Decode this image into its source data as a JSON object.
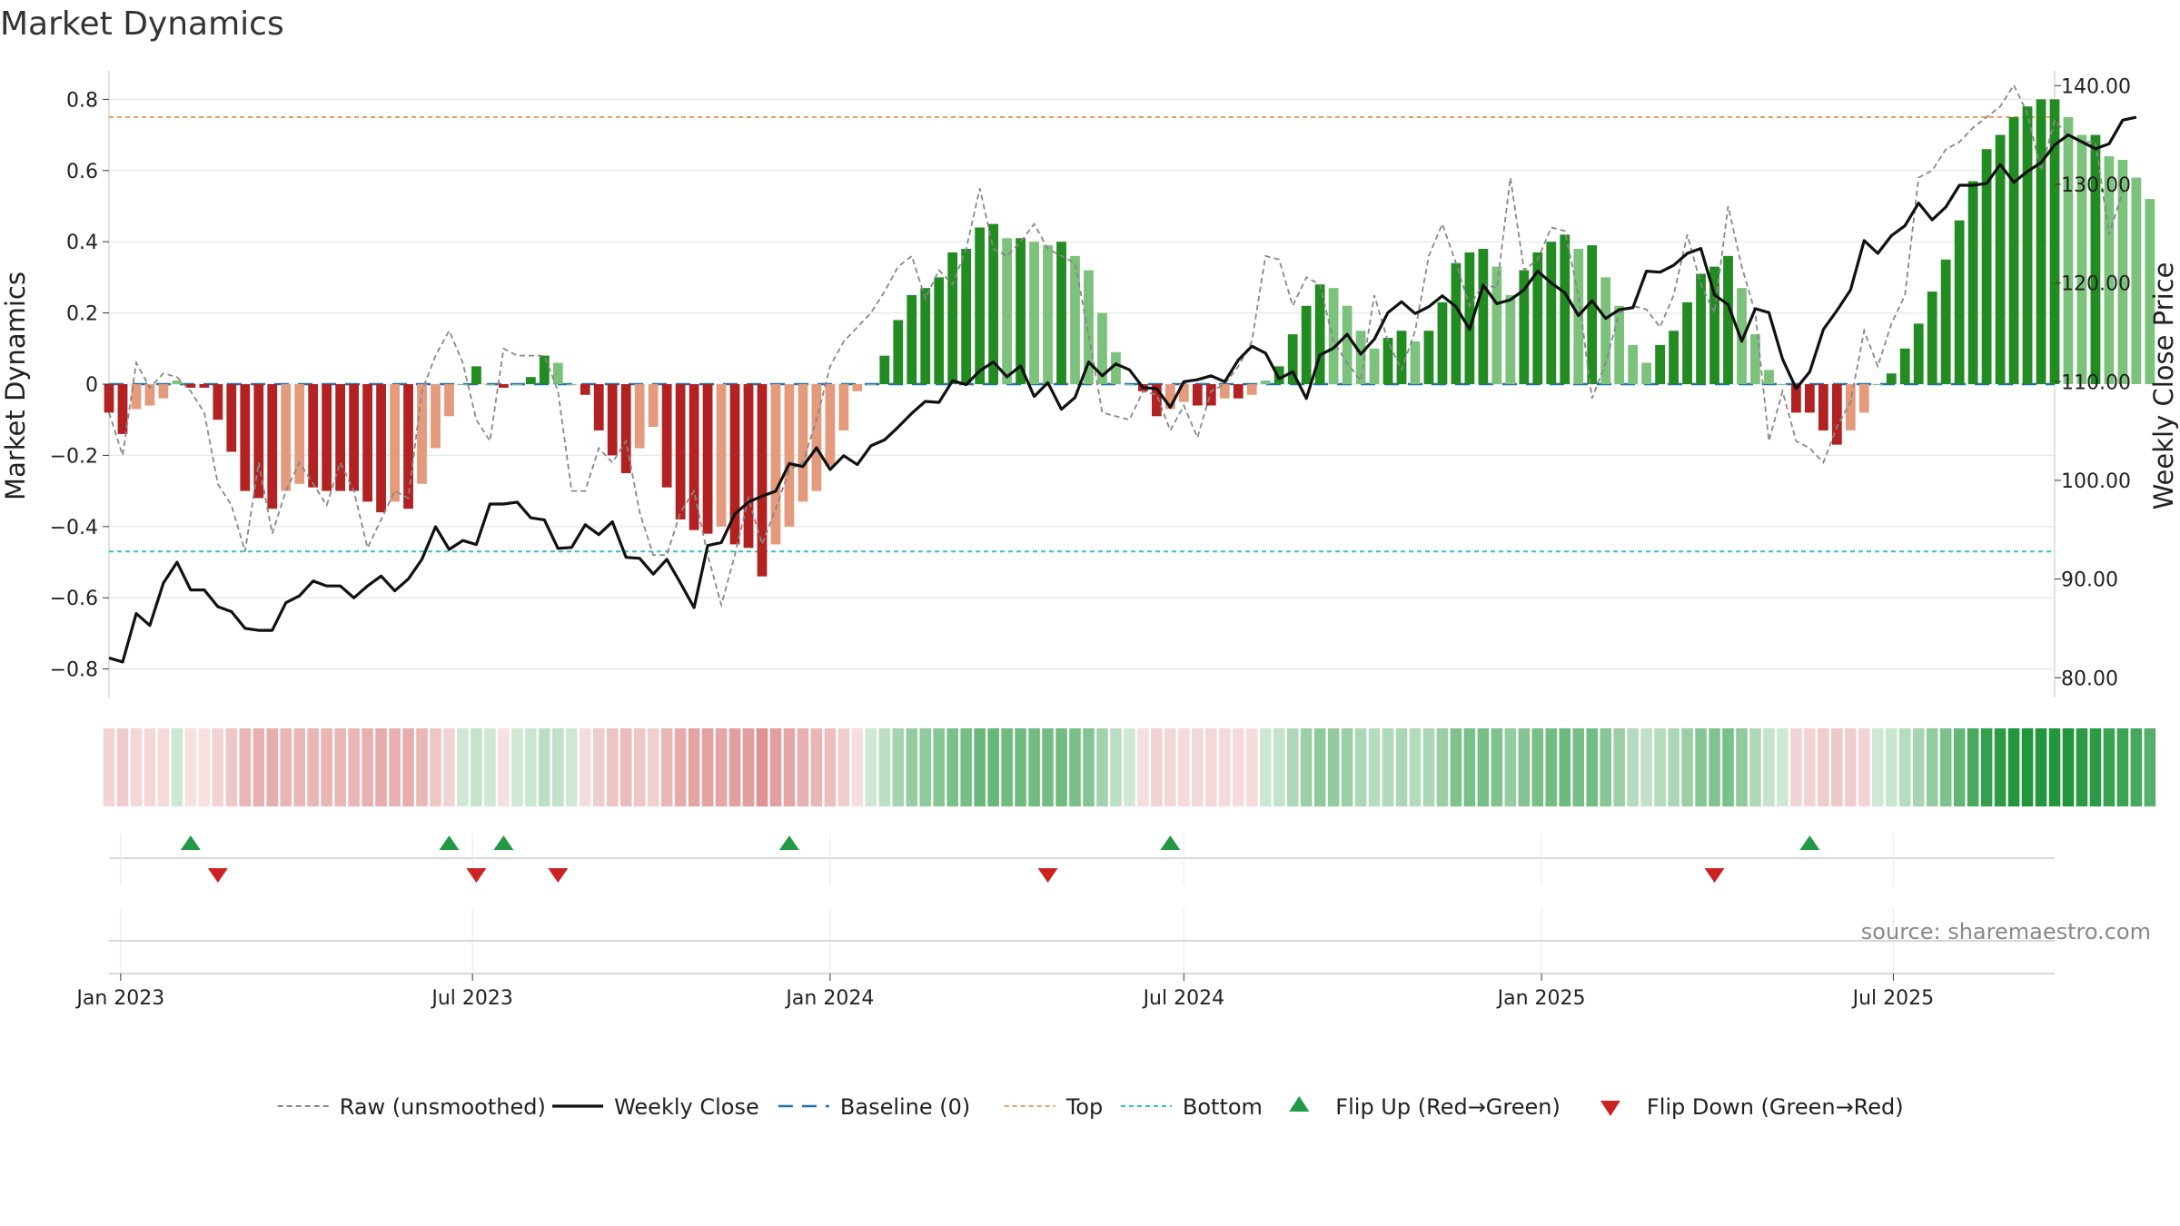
{
  "chart_data": {
    "type": "bar",
    "title": "Market Dynamics",
    "ylabel_left": "Market Dynamics",
    "ylabel_right": "Weekly Close Price",
    "ylim_left": [
      -0.88,
      0.88
    ],
    "ylim_right": [
      78.0,
      141.5
    ],
    "yticks_left": [
      "0.8",
      "0.6",
      "0.4",
      "0.2",
      "0",
      "−0.2",
      "−0.4",
      "−0.6",
      "−0.8"
    ],
    "yticks_left_values": [
      0.8,
      0.6,
      0.4,
      0.2,
      0,
      -0.2,
      -0.4,
      -0.6,
      -0.8
    ],
    "yticks_right": [
      "140.00",
      "130.00",
      "120.00",
      "110.00",
      "100.00",
      "90.00",
      "80.00"
    ],
    "yticks_right_values": [
      140,
      130,
      120,
      110,
      100,
      90,
      80
    ],
    "x_start": "2022-12-26",
    "x_end": "2025-09-22",
    "xticks": [
      {
        "date": "2023-01-01",
        "label": "Jan 2023"
      },
      {
        "date": "2023-07-01",
        "label": "Jul 2023"
      },
      {
        "date": "2024-01-01",
        "label": "Jan 2024"
      },
      {
        "date": "2024-07-01",
        "label": "Jul 2024"
      },
      {
        "date": "2025-01-01",
        "label": "Jan 2025"
      },
      {
        "date": "2025-07-01",
        "label": "Jul 2025"
      }
    ],
    "grid": true,
    "first_week": "2022-12-26",
    "weeks_step_days": 7,
    "smoothed_values": [
      -0.08,
      -0.14,
      -0.07,
      -0.06,
      -0.04,
      0.01,
      -0.01,
      -0.01,
      -0.1,
      -0.19,
      -0.3,
      -0.32,
      -0.35,
      -0.3,
      -0.28,
      -0.29,
      -0.3,
      -0.3,
      -0.3,
      -0.33,
      -0.36,
      -0.33,
      -0.35,
      -0.28,
      -0.18,
      -0.09,
      0.0,
      0.05,
      0.0,
      -0.01,
      0.0,
      0.02,
      0.08,
      0.06,
      0.0,
      -0.03,
      -0.13,
      -0.2,
      -0.25,
      -0.18,
      -0.12,
      -0.29,
      -0.38,
      -0.41,
      -0.42,
      -0.4,
      -0.45,
      -0.46,
      -0.54,
      -0.45,
      -0.4,
      -0.33,
      -0.3,
      -0.23,
      -0.13,
      -0.02,
      0.0,
      0.08,
      0.18,
      0.25,
      0.27,
      0.3,
      0.37,
      0.38,
      0.44,
      0.45,
      0.41,
      0.41,
      0.4,
      0.39,
      0.4,
      0.36,
      0.32,
      0.2,
      0.09,
      0.0,
      -0.02,
      -0.09,
      -0.07,
      -0.05,
      -0.06,
      -0.06,
      -0.04,
      -0.04,
      -0.03,
      0.01,
      0.05,
      0.14,
      0.22,
      0.28,
      0.27,
      0.22,
      0.15,
      0.1,
      0.13,
      0.15,
      0.12,
      0.15,
      0.23,
      0.34,
      0.37,
      0.38,
      0.33,
      0.25,
      0.32,
      0.37,
      0.4,
      0.42,
      0.38,
      0.39,
      0.3,
      0.22,
      0.11,
      0.06,
      0.11,
      0.15,
      0.23,
      0.31,
      0.33,
      0.36,
      0.27,
      0.14,
      0.04,
      0.0,
      -0.08,
      -0.08,
      -0.13,
      -0.17,
      -0.13,
      -0.08,
      0.0,
      0.03,
      0.1,
      0.17,
      0.26,
      0.35,
      0.46,
      0.57,
      0.66,
      0.7,
      0.75,
      0.78,
      0.8,
      0.8,
      0.75,
      0.7,
      0.7,
      0.64,
      0.63,
      0.58,
      0.52
    ],
    "raw_values": [
      -0.08,
      -0.2,
      0.06,
      -0.01,
      0.03,
      0.02,
      -0.02,
      -0.08,
      -0.28,
      -0.34,
      -0.47,
      -0.22,
      -0.42,
      -0.3,
      -0.22,
      -0.28,
      -0.34,
      -0.22,
      -0.3,
      -0.46,
      -0.38,
      -0.3,
      -0.32,
      -0.02,
      0.08,
      0.15,
      0.06,
      -0.1,
      -0.16,
      0.1,
      0.08,
      0.08,
      0.08,
      -0.02,
      -0.3,
      -0.3,
      -0.18,
      -0.22,
      -0.16,
      -0.36,
      -0.48,
      -0.48,
      -0.36,
      -0.3,
      -0.48,
      -0.62,
      -0.48,
      -0.32,
      -0.45,
      -0.35,
      -0.24,
      -0.22,
      -0.1,
      0.05,
      0.12,
      0.16,
      0.2,
      0.26,
      0.33,
      0.36,
      0.24,
      0.32,
      0.28,
      0.38,
      0.55,
      0.38,
      0.36,
      0.4,
      0.45,
      0.38,
      0.36,
      0.34,
      0.14,
      -0.08,
      -0.09,
      -0.1,
      -0.02,
      -0.03,
      -0.13,
      -0.06,
      -0.15,
      -0.02,
      0.0,
      0.05,
      0.12,
      0.36,
      0.35,
      0.22,
      0.3,
      0.28,
      0.12,
      0.06,
      0.01,
      0.25,
      0.12,
      0.04,
      0.15,
      0.36,
      0.45,
      0.34,
      0.22,
      0.28,
      0.27,
      0.58,
      0.32,
      0.35,
      0.44,
      0.43,
      0.25,
      -0.04,
      0.06,
      0.2,
      0.22,
      0.21,
      0.16,
      0.25,
      0.42,
      0.28,
      0.2,
      0.5,
      0.33,
      0.2,
      -0.16,
      -0.02,
      -0.16,
      -0.18,
      -0.22,
      -0.12,
      -0.05,
      0.15,
      0.05,
      0.17,
      0.25,
      0.58,
      0.6,
      0.66,
      0.68,
      0.72,
      0.75,
      0.78,
      0.84,
      0.76,
      0.6,
      0.74,
      0.7,
      0.68,
      0.68,
      0.42,
      0.54
    ],
    "weekly_close": [
      82.0,
      81.6,
      86.5,
      85.3,
      89.6,
      91.7,
      88.9,
      88.9,
      87.2,
      86.7,
      85.0,
      84.8,
      84.8,
      87.6,
      88.3,
      89.8,
      89.3,
      89.3,
      88.1,
      89.3,
      90.3,
      88.8,
      90.0,
      92.0,
      95.3,
      93.0,
      93.9,
      93.5,
      97.6,
      97.6,
      97.8,
      96.2,
      96.0,
      93.1,
      93.2,
      95.5,
      94.5,
      95.8,
      92.2,
      92.1,
      90.5,
      92.0,
      89.6,
      87.1,
      93.4,
      93.7,
      96.6,
      97.8,
      98.4,
      98.9,
      101.7,
      101.4,
      103.3,
      101.1,
      102.5,
      101.6,
      103.5,
      104.1,
      105.4,
      106.8,
      108.0,
      107.9,
      110.1,
      109.7,
      111.1,
      112.0,
      110.5,
      111.6,
      108.5,
      109.9,
      107.2,
      108.4,
      112.0,
      110.6,
      111.8,
      111.2,
      109.4,
      109.3,
      107.4,
      110.0,
      110.2,
      110.6,
      110.0,
      112.2,
      113.6,
      112.9,
      110.3,
      111.0,
      108.3,
      112.7,
      113.4,
      114.8,
      112.8,
      114.3,
      117.0,
      118.1,
      116.9,
      117.6,
      118.7,
      117.6,
      115.3,
      119.8,
      117.9,
      118.3,
      119.3,
      121.2,
      120.0,
      119.0,
      116.7,
      118.2,
      116.4,
      117.3,
      117.5,
      121.2,
      121.1,
      121.8,
      123.0,
      123.5,
      118.8,
      117.8,
      114.1,
      117.4,
      117.0,
      112.3,
      109.3,
      111.0,
      115.3,
      117.2,
      119.3,
      124.3,
      123.0,
      124.8,
      125.8,
      128.1,
      126.4,
      127.7,
      129.9,
      129.9,
      130.1,
      132.0,
      130.2,
      131.3,
      132.2,
      134.0,
      135.0,
      134.3,
      133.6,
      134.1,
      136.5,
      136.8
    ],
    "flip_up_dates": [
      "2023-02-06",
      "2023-06-19",
      "2023-07-17",
      "2023-12-11",
      "2024-06-24",
      "2025-05-19"
    ],
    "flip_down_dates": [
      "2023-02-20",
      "2023-07-03",
      "2023-08-14",
      "2024-04-22",
      "2025-03-31"
    ],
    "lines": {
      "baseline": 0,
      "top": 0.75,
      "bottom": -0.47
    },
    "legend_position": "bottom-center",
    "legend": [
      {
        "label": "Raw (unsmoothed)",
        "style": "dashed-gray"
      },
      {
        "label": "Weekly Close",
        "style": "solid-black"
      },
      {
        "label": "Baseline (0)",
        "style": "dashed-blue"
      },
      {
        "label": "Top",
        "style": "dotted-orange"
      },
      {
        "label": "Bottom",
        "style": "dotted-cyan"
      },
      {
        "label": "Flip Up (Red→Green)",
        "style": "triangle-up-green"
      },
      {
        "label": "Flip Down (Green→Red)",
        "style": "triangle-down-red"
      }
    ],
    "source_text": "source: sharemaestro.com"
  },
  "colors": {
    "bar_pos_strong": "#228b22",
    "bar_pos_weak": "#7cc17c",
    "bar_neg_strong": "#b22222",
    "bar_neg_weak": "#e49a7c",
    "raw_line": "#888888",
    "close_line": "#111111",
    "baseline": "#1f6fb0",
    "top": "#e8a060",
    "bottom": "#30c0d0",
    "flip_up": "#229944",
    "flip_down": "#cc2222",
    "grid": "#e6e6e6"
  }
}
